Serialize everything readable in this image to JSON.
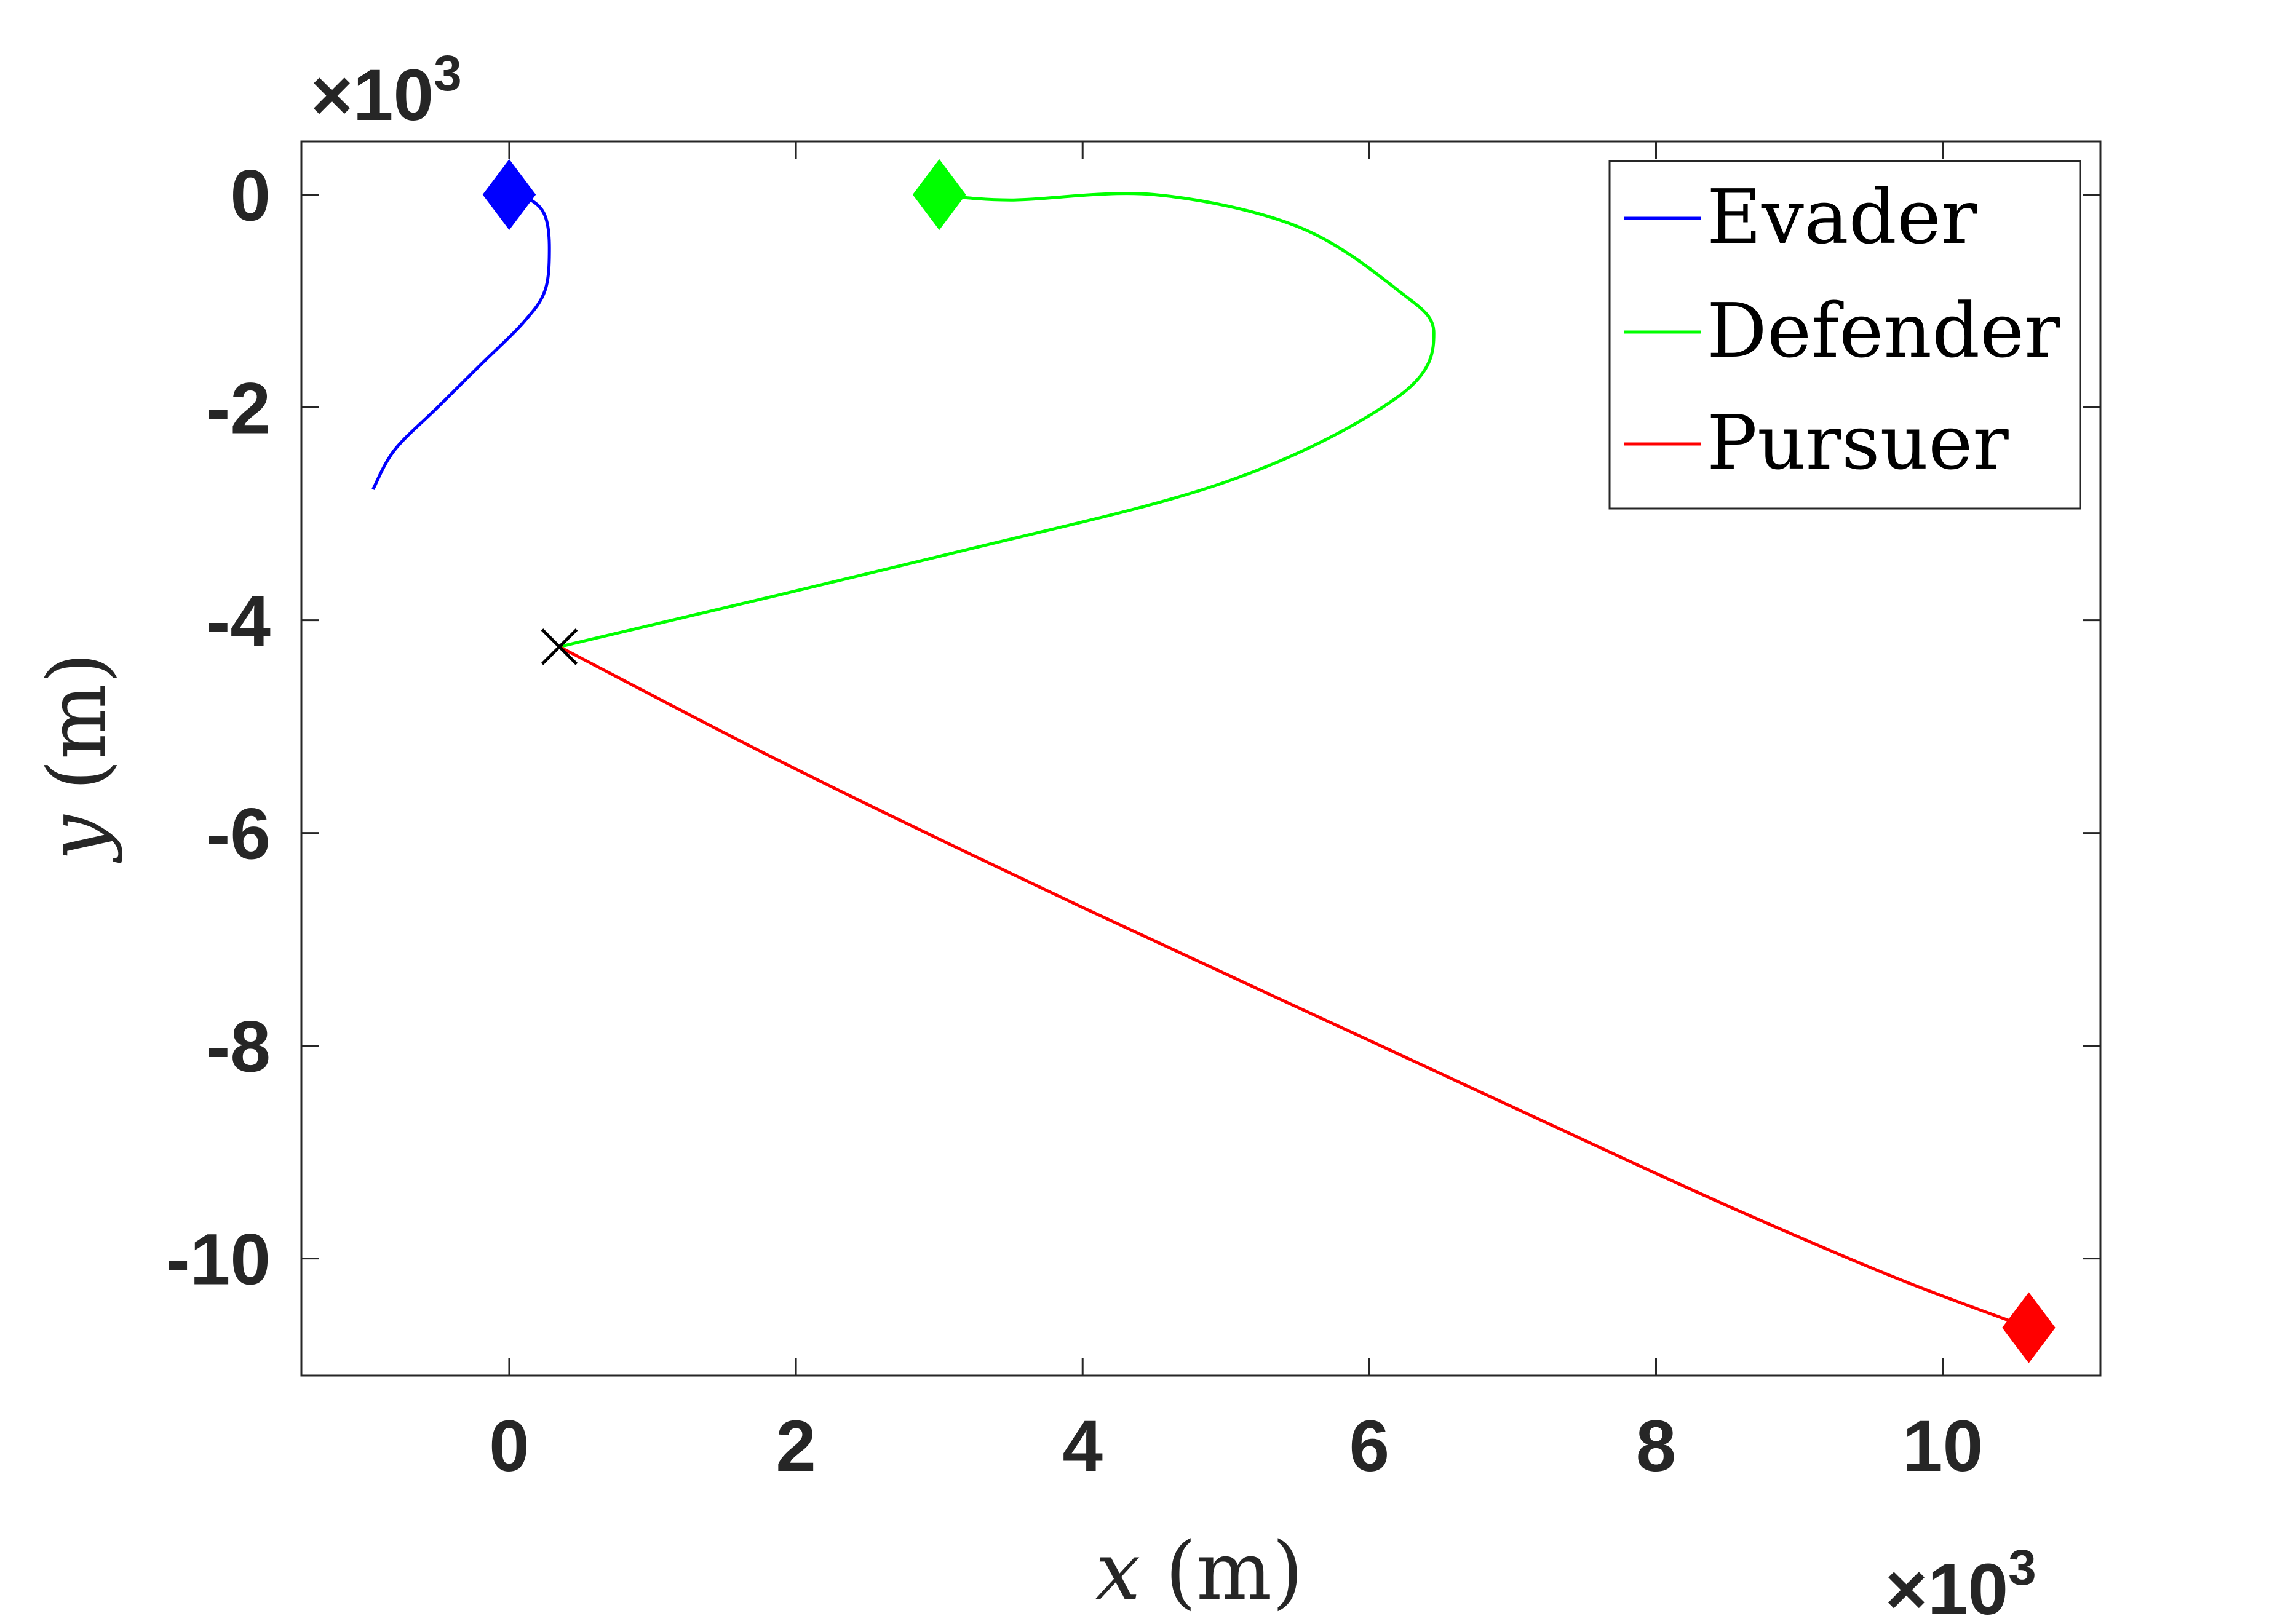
{
  "chart_data": {
    "type": "line",
    "xlabel_var": "x",
    "xlabel_unit": "(m)",
    "ylabel_var": "y",
    "ylabel_unit": "(m)",
    "x_exponent": "×10",
    "x_exponent_power": "3",
    "y_exponent": "×10",
    "y_exponent_power": "3",
    "xlim": [
      -1.45,
      11.1
    ],
    "ylim": [
      -11.1,
      0.5
    ],
    "xticks": [
      0,
      2,
      4,
      6,
      8,
      10
    ],
    "xtick_labels": [
      "0",
      "2",
      "4",
      "6",
      "8",
      "10"
    ],
    "yticks": [
      0,
      -2,
      -4,
      -6,
      -8,
      -10
    ],
    "ytick_labels": [
      "0",
      "-2",
      "-4",
      "-6",
      "-8",
      "-10"
    ],
    "grid": false,
    "legend_position": "top-right",
    "series": [
      {
        "name": "Evader",
        "color": "#0000ff",
        "x": [
          0.0,
          0.15,
          0.25,
          0.28,
          0.25,
          0.1,
          -0.2,
          -0.5,
          -0.8,
          -0.95
        ],
        "y": [
          0.0,
          -0.05,
          -0.2,
          -0.5,
          -0.9,
          -1.2,
          -1.6,
          -2.0,
          -2.4,
          -2.77
        ],
        "start_marker": {
          "shape": "diamond",
          "x": 0.0,
          "y": 0.0
        }
      },
      {
        "name": "Defender",
        "color": "#00ff00",
        "x": [
          3.0,
          3.5,
          4.5,
          5.5,
          6.2,
          6.45,
          6.2,
          5.0,
          3.0,
          0.35
        ],
        "y": [
          0.0,
          -0.05,
          0.0,
          -0.3,
          -0.9,
          -1.3,
          -1.9,
          -2.7,
          -3.4,
          -4.25
        ],
        "start_marker": {
          "shape": "diamond",
          "x": 3.0,
          "y": 0.0
        }
      },
      {
        "name": "Pursuer",
        "color": "#ff0000",
        "x": [
          0.35,
          2.0,
          4.0,
          6.0,
          8.0,
          9.0,
          9.8,
          10.6
        ],
        "y": [
          -4.25,
          -5.4,
          -6.7,
          -7.95,
          -9.2,
          -9.8,
          -10.25,
          -10.65
        ],
        "start_marker": {
          "shape": "diamond",
          "x": 10.6,
          "y": -10.65
        }
      }
    ],
    "intercept_marker": {
      "shape": "x",
      "x": 0.35,
      "y": -4.25,
      "color": "#000000"
    }
  }
}
